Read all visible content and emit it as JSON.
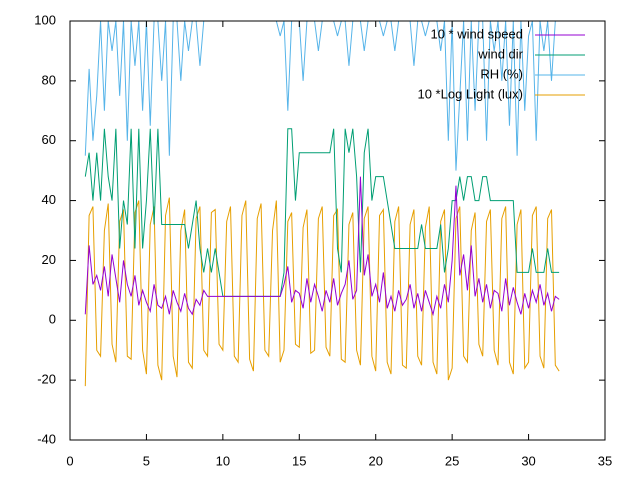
{
  "chart_data": {
    "type": "line",
    "xlim": [
      0,
      35
    ],
    "xticks": [
      0,
      5,
      10,
      15,
      20,
      25,
      30,
      35
    ],
    "ylim": [
      -40,
      100
    ],
    "yticks": [
      -40,
      -20,
      0,
      20,
      40,
      60,
      80,
      100
    ],
    "legend": "top-right",
    "x": [
      1,
      1.25,
      1.5,
      1.75,
      2,
      2.25,
      2.5,
      2.75,
      3,
      3.25,
      3.5,
      3.75,
      4,
      4.25,
      4.5,
      4.75,
      5,
      5.25,
      5.5,
      5.75,
      6,
      6.25,
      6.5,
      6.75,
      7,
      7.25,
      7.5,
      7.75,
      8,
      8.25,
      8.5,
      8.75,
      9,
      9.25,
      9.5,
      9.75,
      10,
      10.25,
      10.5,
      10.75,
      11,
      11.25,
      11.5,
      11.75,
      12,
      12.25,
      12.5,
      12.75,
      13,
      13.25,
      13.5,
      13.75,
      14,
      14.25,
      14.5,
      14.75,
      15,
      15.25,
      15.5,
      15.75,
      16,
      16.25,
      16.5,
      16.75,
      17,
      17.25,
      17.5,
      17.75,
      18,
      18.25,
      18.5,
      18.75,
      19,
      19.25,
      19.5,
      19.75,
      20,
      20.25,
      20.5,
      20.75,
      21,
      21.25,
      21.5,
      21.75,
      22,
      22.25,
      22.5,
      22.75,
      23,
      23.25,
      23.5,
      23.75,
      24,
      24.25,
      24.5,
      24.75,
      25,
      25.25,
      25.5,
      25.75,
      26,
      26.25,
      26.5,
      26.75,
      27,
      27.25,
      27.5,
      27.75,
      28,
      28.25,
      28.5,
      28.75,
      29,
      29.25,
      29.5,
      29.75,
      30,
      30.25,
      30.5,
      30.75,
      31,
      31.25,
      31.5,
      31.75,
      32
    ],
    "series": [
      {
        "name": "10 * wind speed",
        "color": "#9400d3",
        "values": [
          2,
          25,
          12,
          15,
          10,
          18,
          8,
          22,
          14,
          6,
          20,
          12,
          8,
          15,
          5,
          10,
          6,
          3,
          12,
          5,
          4,
          8,
          2,
          10,
          6,
          3,
          9,
          4,
          2,
          7,
          5,
          10,
          8,
          8,
          8,
          8,
          8,
          8,
          8,
          8,
          8,
          8,
          8,
          8,
          8,
          8,
          8,
          8,
          8,
          8,
          8,
          8,
          12,
          18,
          6,
          10,
          9,
          4,
          14,
          6,
          12,
          8,
          3,
          10,
          6,
          14,
          5,
          9,
          12,
          20,
          7,
          10,
          48,
          15,
          22,
          8,
          12,
          6,
          16,
          4,
          8,
          3,
          10,
          5,
          7,
          12,
          4,
          9,
          3,
          10,
          6,
          2,
          8,
          4,
          12,
          6,
          20,
          45,
          15,
          22,
          10,
          25,
          8,
          14,
          6,
          12,
          4,
          10,
          9,
          3,
          14,
          5,
          11,
          6,
          2,
          9,
          4,
          10,
          6,
          12,
          5,
          9,
          3,
          8,
          7
        ]
      },
      {
        "name": "wind dir",
        "color": "#009e73",
        "values": [
          48,
          56,
          40,
          56,
          40,
          64,
          48,
          40,
          64,
          24,
          40,
          32,
          64,
          24,
          64,
          24,
          40,
          64,
          32,
          64,
          32,
          32,
          32,
          32,
          32,
          32,
          32,
          24,
          32,
          40,
          24,
          16,
          24,
          16,
          24,
          16,
          8,
          8,
          8,
          8,
          8,
          8,
          8,
          8,
          8,
          8,
          8,
          8,
          8,
          8,
          8,
          8,
          16,
          64,
          64,
          40,
          56,
          56,
          56,
          56,
          56,
          56,
          56,
          56,
          56,
          64,
          24,
          16,
          64,
          56,
          64,
          48,
          16,
          56,
          64,
          40,
          48,
          48,
          48,
          40,
          32,
          24,
          24,
          24,
          24,
          24,
          24,
          24,
          32,
          24,
          24,
          24,
          24,
          32,
          16,
          24,
          40,
          40,
          48,
          40,
          48,
          48,
          40,
          40,
          48,
          48,
          40,
          40,
          40,
          40,
          40,
          40,
          40,
          16,
          16,
          16,
          16,
          24,
          16,
          16,
          16,
          24,
          16,
          16,
          16
        ]
      },
      {
        "name": "RH (%)",
        "color": "#56b4e9",
        "values": [
          55,
          84,
          60,
          75,
          100,
          70,
          100,
          90,
          100,
          75,
          100,
          60,
          100,
          85,
          100,
          70,
          100,
          65,
          100,
          100,
          80,
          100,
          55,
          100,
          100,
          80,
          100,
          90,
          100,
          100,
          85,
          100,
          100,
          100,
          100,
          100,
          100,
          100,
          100,
          100,
          100,
          100,
          100,
          100,
          100,
          100,
          100,
          100,
          100,
          100,
          100,
          95,
          100,
          70,
          100,
          100,
          100,
          80,
          100,
          100,
          100,
          90,
          100,
          100,
          100,
          100,
          95,
          100,
          100,
          85,
          100,
          100,
          100,
          90,
          100,
          100,
          100,
          100,
          95,
          100,
          100,
          90,
          100,
          100,
          100,
          100,
          85,
          100,
          100,
          95,
          100,
          100,
          100,
          90,
          100,
          60,
          100,
          50,
          75,
          100,
          60,
          100,
          70,
          100,
          100,
          60,
          100,
          90,
          100,
          80,
          100,
          65,
          100,
          55,
          100,
          70,
          95,
          100,
          60,
          100,
          90,
          100,
          80,
          100,
          100
        ]
      },
      {
        "name": "10 *Log Light (lux)",
        "color": "#e69f00",
        "values": [
          -22,
          35,
          38,
          -10,
          -12,
          30,
          39,
          -8,
          -14,
          33,
          37,
          -12,
          -13,
          36,
          40,
          -10,
          -18,
          32,
          38,
          -15,
          -20,
          35,
          41,
          -12,
          -19,
          30,
          37,
          -14,
          -16,
          34,
          38,
          -10,
          -12,
          36,
          37,
          -8,
          -10,
          33,
          38,
          -12,
          -14,
          35,
          40,
          -13,
          -17,
          34,
          39,
          -10,
          -12,
          30,
          40,
          -14,
          -10,
          33,
          36,
          -8,
          -9,
          31,
          37,
          -11,
          -10,
          34,
          38,
          -9,
          -12,
          35,
          37,
          -13,
          -14,
          32,
          36,
          -10,
          -15,
          34,
          38,
          -12,
          -17,
          35,
          37,
          -14,
          -18,
          33,
          38,
          -15,
          -16,
          32,
          37,
          -12,
          -15,
          31,
          38,
          -14,
          -18,
          33,
          37,
          -20,
          -16,
          34,
          38,
          -12,
          -14,
          30,
          36,
          -8,
          -12,
          33,
          37,
          -10,
          -15,
          34,
          38,
          -14,
          -18,
          32,
          37,
          -16,
          -14,
          35,
          38,
          -12,
          -16,
          34,
          37,
          -15,
          -17
        ]
      }
    ]
  }
}
